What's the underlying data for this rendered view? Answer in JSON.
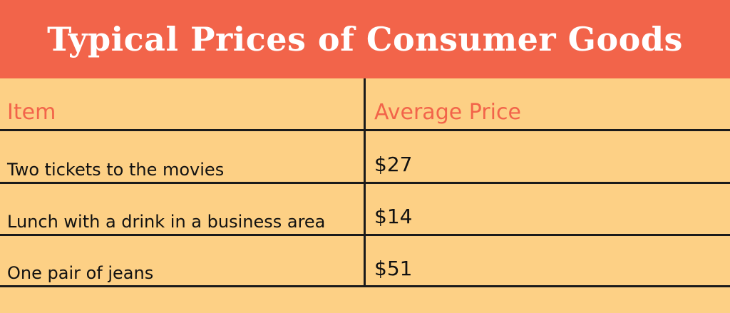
{
  "chart_data": {
    "type": "table",
    "title": "Typical Prices of Consumer Goods",
    "columns": [
      "Item",
      "Average Price"
    ],
    "rows": [
      {
        "item": "Two tickets to the movies",
        "price": "$27"
      },
      {
        "item": "Lunch with a drink in a business area",
        "price": "$14"
      },
      {
        "item": "One pair of jeans",
        "price": "$51"
      }
    ]
  },
  "colors": {
    "header_bar": "#F2644A",
    "table_background": "#FDD085",
    "header_text": "#F2644A",
    "grid_lines": "#1A1A1A"
  }
}
